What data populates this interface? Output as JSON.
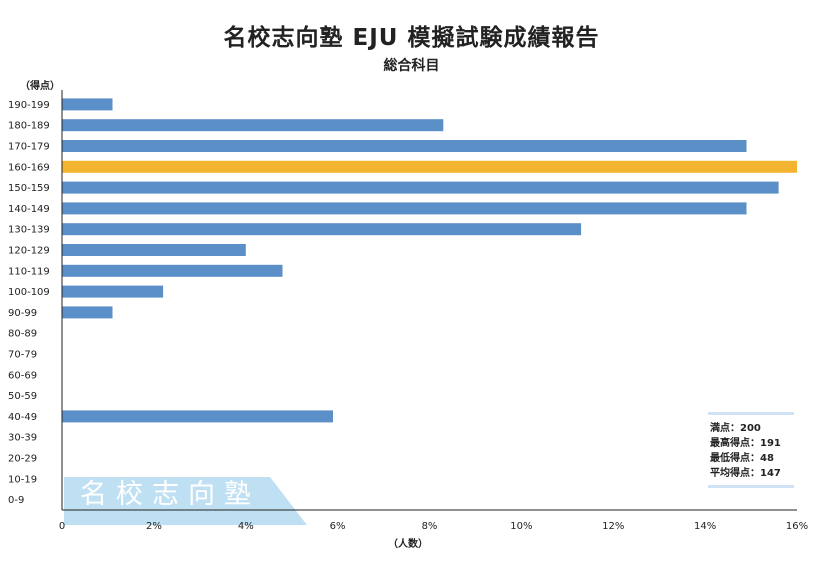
{
  "title": "名校志向塾 EJU 模擬試験成績報告",
  "subtitle": "総合科目",
  "watermark": "名校志向塾",
  "stats": {
    "full_score": "満点：200",
    "highest": "最高得点：191",
    "lowest": "最低得点：48",
    "average": "平均得点：147"
  },
  "colors": {
    "bar": "#5b8fc7",
    "highlight": "#f3b431",
    "watermark_band": "#bfe0f3",
    "stats_rule": "#cfe3f5"
  },
  "chart_data": {
    "type": "bar",
    "orientation": "horizontal",
    "title": "名校志向塾 EJU 模擬試験成績報告",
    "subtitle": "総合科目",
    "ylabel": "（得点）",
    "xlabel": "（人数）",
    "xlim": [
      0,
      16
    ],
    "x_ticks": [
      "0",
      "2%",
      "4%",
      "6%",
      "8%",
      "10%",
      "12%",
      "14%",
      "16%"
    ],
    "highlight_category": "160-169",
    "categories": [
      "190-199",
      "180-189",
      "170-179",
      "160-169",
      "150-159",
      "140-149",
      "130-139",
      "120-129",
      "110-119",
      "100-109",
      "90-99",
      "80-89",
      "70-79",
      "60-69",
      "50-59",
      "40-49",
      "30-39",
      "20-29",
      "10-19",
      "0-9"
    ],
    "values": [
      1.1,
      8.3,
      14.9,
      16.0,
      15.6,
      14.9,
      11.3,
      4.0,
      4.8,
      2.2,
      1.1,
      0,
      0,
      0,
      0,
      5.9,
      0,
      0,
      0,
      0
    ]
  }
}
